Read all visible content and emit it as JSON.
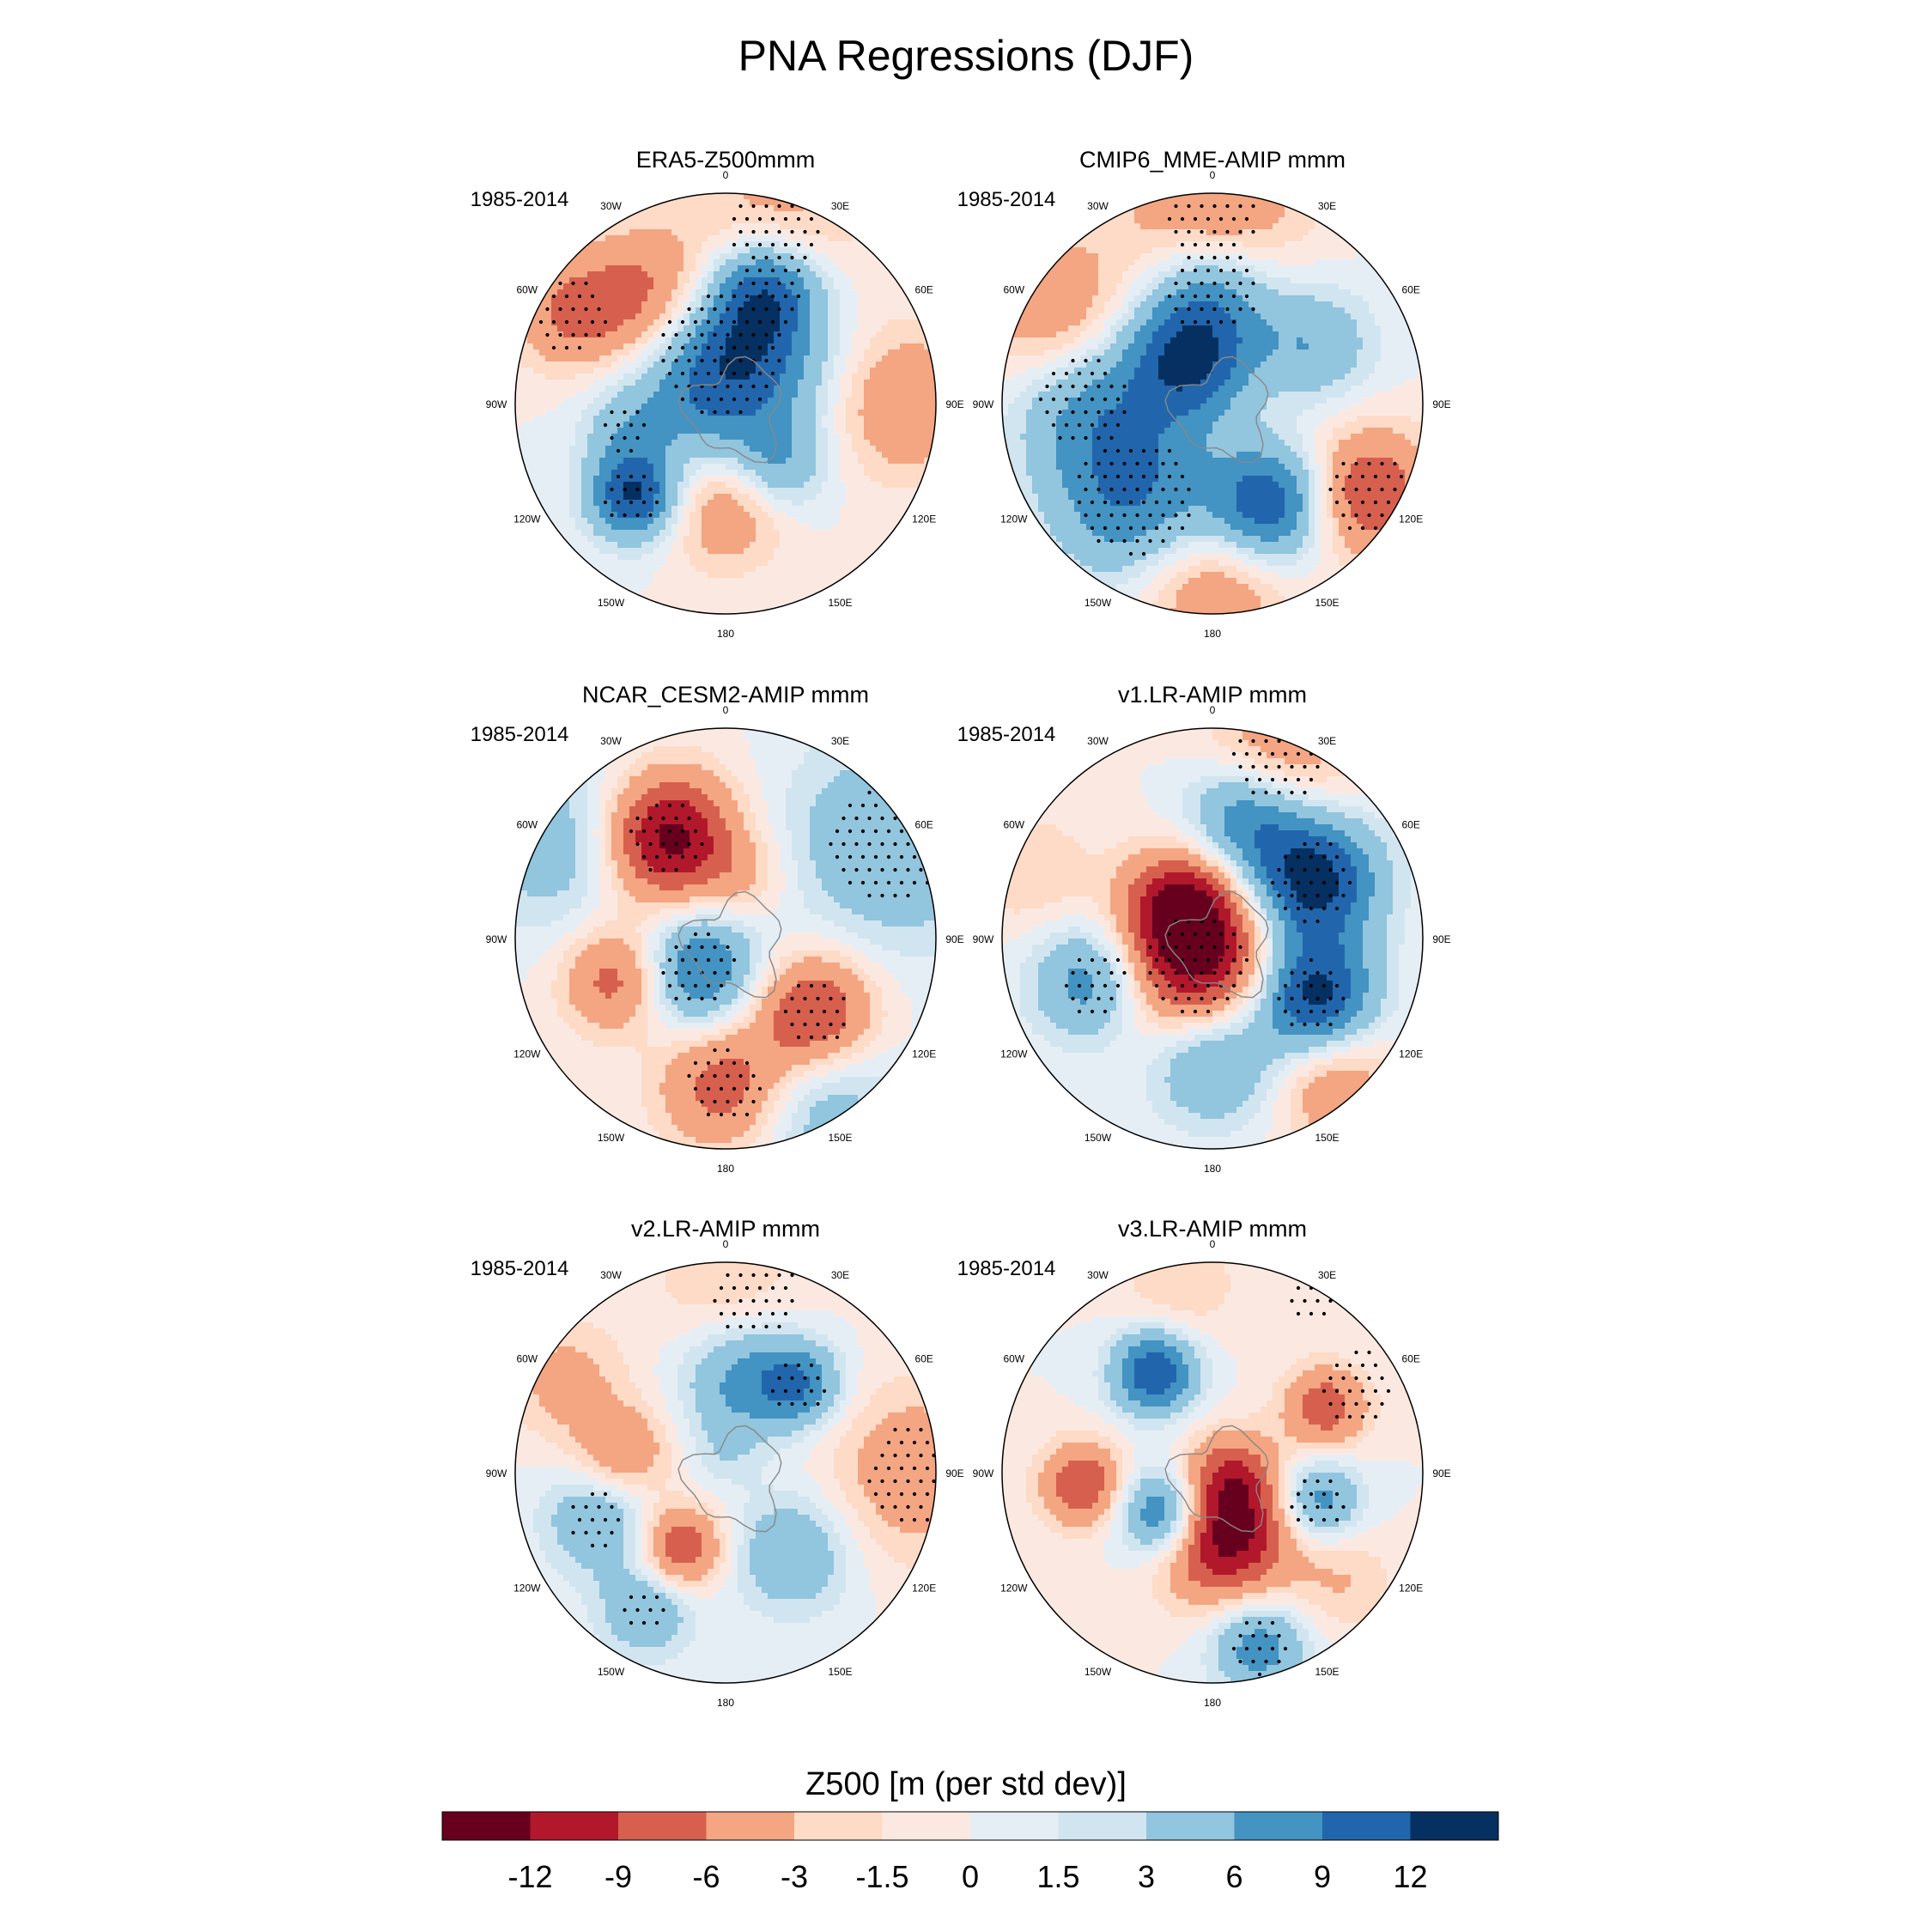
{
  "title": "PNA Regressions (DJF)",
  "period": "1985-2014",
  "lon_labels": [
    "0",
    "30E",
    "60E",
    "90E",
    "120E",
    "150E",
    "180",
    "150W",
    "120W",
    "90W",
    "60W",
    "30W"
  ],
  "panels": [
    {
      "title": "ERA5-Z500mmm",
      "blobs": [
        [
          -5,
          0.22,
          14,
          0.32
        ],
        [
          20,
          0.58,
          9,
          0.18
        ],
        [
          -35,
          0.58,
          -10,
          0.24
        ],
        [
          -105,
          0.5,
          3,
          0.14
        ],
        [
          -135,
          0.62,
          12,
          0.15
        ],
        [
          140,
          0.4,
          5,
          0.15
        ],
        [
          180,
          0.5,
          -6,
          0.2
        ],
        [
          90,
          0.85,
          -6,
          0.25
        ],
        [
          -60,
          0.85,
          -6,
          0.2
        ],
        [
          15,
          0.85,
          -5,
          0.3
        ]
      ],
      "stipple": [
        [
          -5,
          0.22,
          0.3
        ],
        [
          20,
          0.58,
          0.18
        ],
        [
          -135,
          0.62,
          0.14
        ],
        [
          -105,
          0.5,
          0.12
        ],
        [
          15,
          0.88,
          0.22
        ],
        [
          -60,
          0.85,
          0.18
        ]
      ]
    },
    {
      "title": "CMIP6_MME-AMIP  mmm",
      "blobs": [
        [
          -25,
          0.22,
          14,
          0.22
        ],
        [
          20,
          0.15,
          -3,
          0.25
        ],
        [
          0,
          0.55,
          7,
          0.22
        ],
        [
          -140,
          0.58,
          9,
          0.28
        ],
        [
          150,
          0.55,
          12,
          0.2
        ],
        [
          60,
          0.55,
          6,
          0.2
        ],
        [
          -90,
          0.6,
          6,
          0.25
        ],
        [
          120,
          0.85,
          -9,
          0.22
        ],
        [
          0,
          0.92,
          -7,
          0.3
        ],
        [
          -60,
          0.88,
          -6,
          0.25
        ],
        [
          180,
          0.88,
          -6,
          0.25
        ]
      ],
      "stipple": [
        [
          -140,
          0.58,
          0.28
        ],
        [
          0,
          0.55,
          0.22
        ],
        [
          120,
          0.85,
          0.2
        ],
        [
          0,
          0.92,
          0.22
        ],
        [
          -90,
          0.62,
          0.22
        ]
      ]
    },
    {
      "title": "NCAR_CESM2-AMIP  mmm",
      "blobs": [
        [
          -140,
          0.2,
          10,
          0.2
        ],
        [
          -30,
          0.55,
          -14,
          0.22
        ],
        [
          130,
          0.55,
          -10,
          0.2
        ],
        [
          -110,
          0.55,
          -8,
          0.18
        ],
        [
          180,
          0.7,
          -8,
          0.22
        ],
        [
          60,
          0.9,
          6,
          0.35
        ],
        [
          -60,
          0.9,
          5,
          0.3
        ],
        [
          150,
          0.92,
          5,
          0.25
        ],
        [
          20,
          0.3,
          -3,
          0.15
        ]
      ],
      "stipple": [
        [
          -140,
          0.2,
          0.18
        ],
        [
          -30,
          0.55,
          0.18
        ],
        [
          60,
          0.9,
          0.28
        ],
        [
          130,
          0.55,
          0.16
        ],
        [
          180,
          0.7,
          0.18
        ]
      ]
    },
    {
      "title": "v1.LR-AMIP  mmm",
      "blobs": [
        [
          -150,
          0.15,
          -14,
          0.28
        ],
        [
          -40,
          0.22,
          -9,
          0.18
        ],
        [
          60,
          0.55,
          14,
          0.22
        ],
        [
          120,
          0.55,
          14,
          0.2
        ],
        [
          15,
          0.6,
          9,
          0.2
        ],
        [
          -110,
          0.6,
          9,
          0.2
        ],
        [
          180,
          0.55,
          9,
          0.22
        ],
        [
          20,
          0.92,
          -6,
          0.25
        ],
        [
          140,
          0.9,
          -6,
          0.2
        ],
        [
          -70,
          0.92,
          -3,
          0.2
        ]
      ],
      "stipple": [
        [
          -150,
          0.15,
          0.24
        ],
        [
          60,
          0.55,
          0.2
        ],
        [
          120,
          0.55,
          0.18
        ],
        [
          -110,
          0.6,
          0.16
        ],
        [
          20,
          0.92,
          0.22
        ]
      ]
    },
    {
      "title": "v2.LR-AMIP  mmm",
      "blobs": [
        [
          -150,
          0.42,
          -9,
          0.14
        ],
        [
          -80,
          0.5,
          -6,
          0.16
        ],
        [
          10,
          0.45,
          7,
          0.2
        ],
        [
          40,
          0.55,
          8,
          0.14
        ],
        [
          -110,
          0.65,
          6,
          0.18
        ],
        [
          140,
          0.5,
          6,
          0.2
        ],
        [
          -150,
          0.75,
          6,
          0.16
        ],
        [
          90,
          0.9,
          -5,
          0.3
        ],
        [
          0,
          0.9,
          -3,
          0.25
        ],
        [
          -60,
          0.88,
          -4,
          0.2
        ],
        [
          0,
          0.1,
          2,
          0.12
        ]
      ],
      "stipple": [
        [
          40,
          0.55,
          0.14
        ],
        [
          -110,
          0.65,
          0.14
        ],
        [
          -150,
          0.75,
          0.12
        ],
        [
          90,
          0.92,
          0.25
        ],
        [
          10,
          0.85,
          0.2
        ]
      ]
    },
    {
      "title": "v3.LR-AMIP  mmm",
      "blobs": [
        [
          -130,
          0.3,
          12,
          0.15
        ],
        [
          -30,
          0.55,
          12,
          0.14
        ],
        [
          170,
          0.3,
          -14,
          0.22
        ],
        [
          100,
          0.1,
          -6,
          0.15
        ],
        [
          -95,
          0.62,
          -9,
          0.14
        ],
        [
          60,
          0.62,
          -8,
          0.14
        ],
        [
          105,
          0.52,
          8,
          0.14
        ],
        [
          165,
          0.85,
          8,
          0.16
        ],
        [
          -10,
          0.92,
          -3,
          0.2
        ],
        [
          130,
          0.8,
          -3,
          0.18
        ]
      ],
      "stipple": [
        [
          60,
          0.8,
          0.18
        ],
        [
          105,
          0.52,
          0.14
        ],
        [
          165,
          0.85,
          0.14
        ],
        [
          30,
          0.95,
          0.12
        ]
      ]
    }
  ],
  "colorbar": {
    "title": "Z500 [m (per std dev)]",
    "colors": [
      "#67001f",
      "#b2182b",
      "#d6604d",
      "#f4a582",
      "#fddbc7",
      "#fbe9e1",
      "#e6eef5",
      "#d1e5f0",
      "#92c5de",
      "#4393c3",
      "#2166ac",
      "#053061"
    ],
    "levels": [
      -12,
      -9,
      -6,
      -3,
      -1.5,
      0,
      1.5,
      3,
      6,
      9,
      12
    ],
    "tick_labels": [
      "-12",
      "-9",
      "-6",
      "-3",
      "-1.5",
      "0",
      "1.5",
      "3",
      "6",
      "9",
      "12"
    ]
  }
}
